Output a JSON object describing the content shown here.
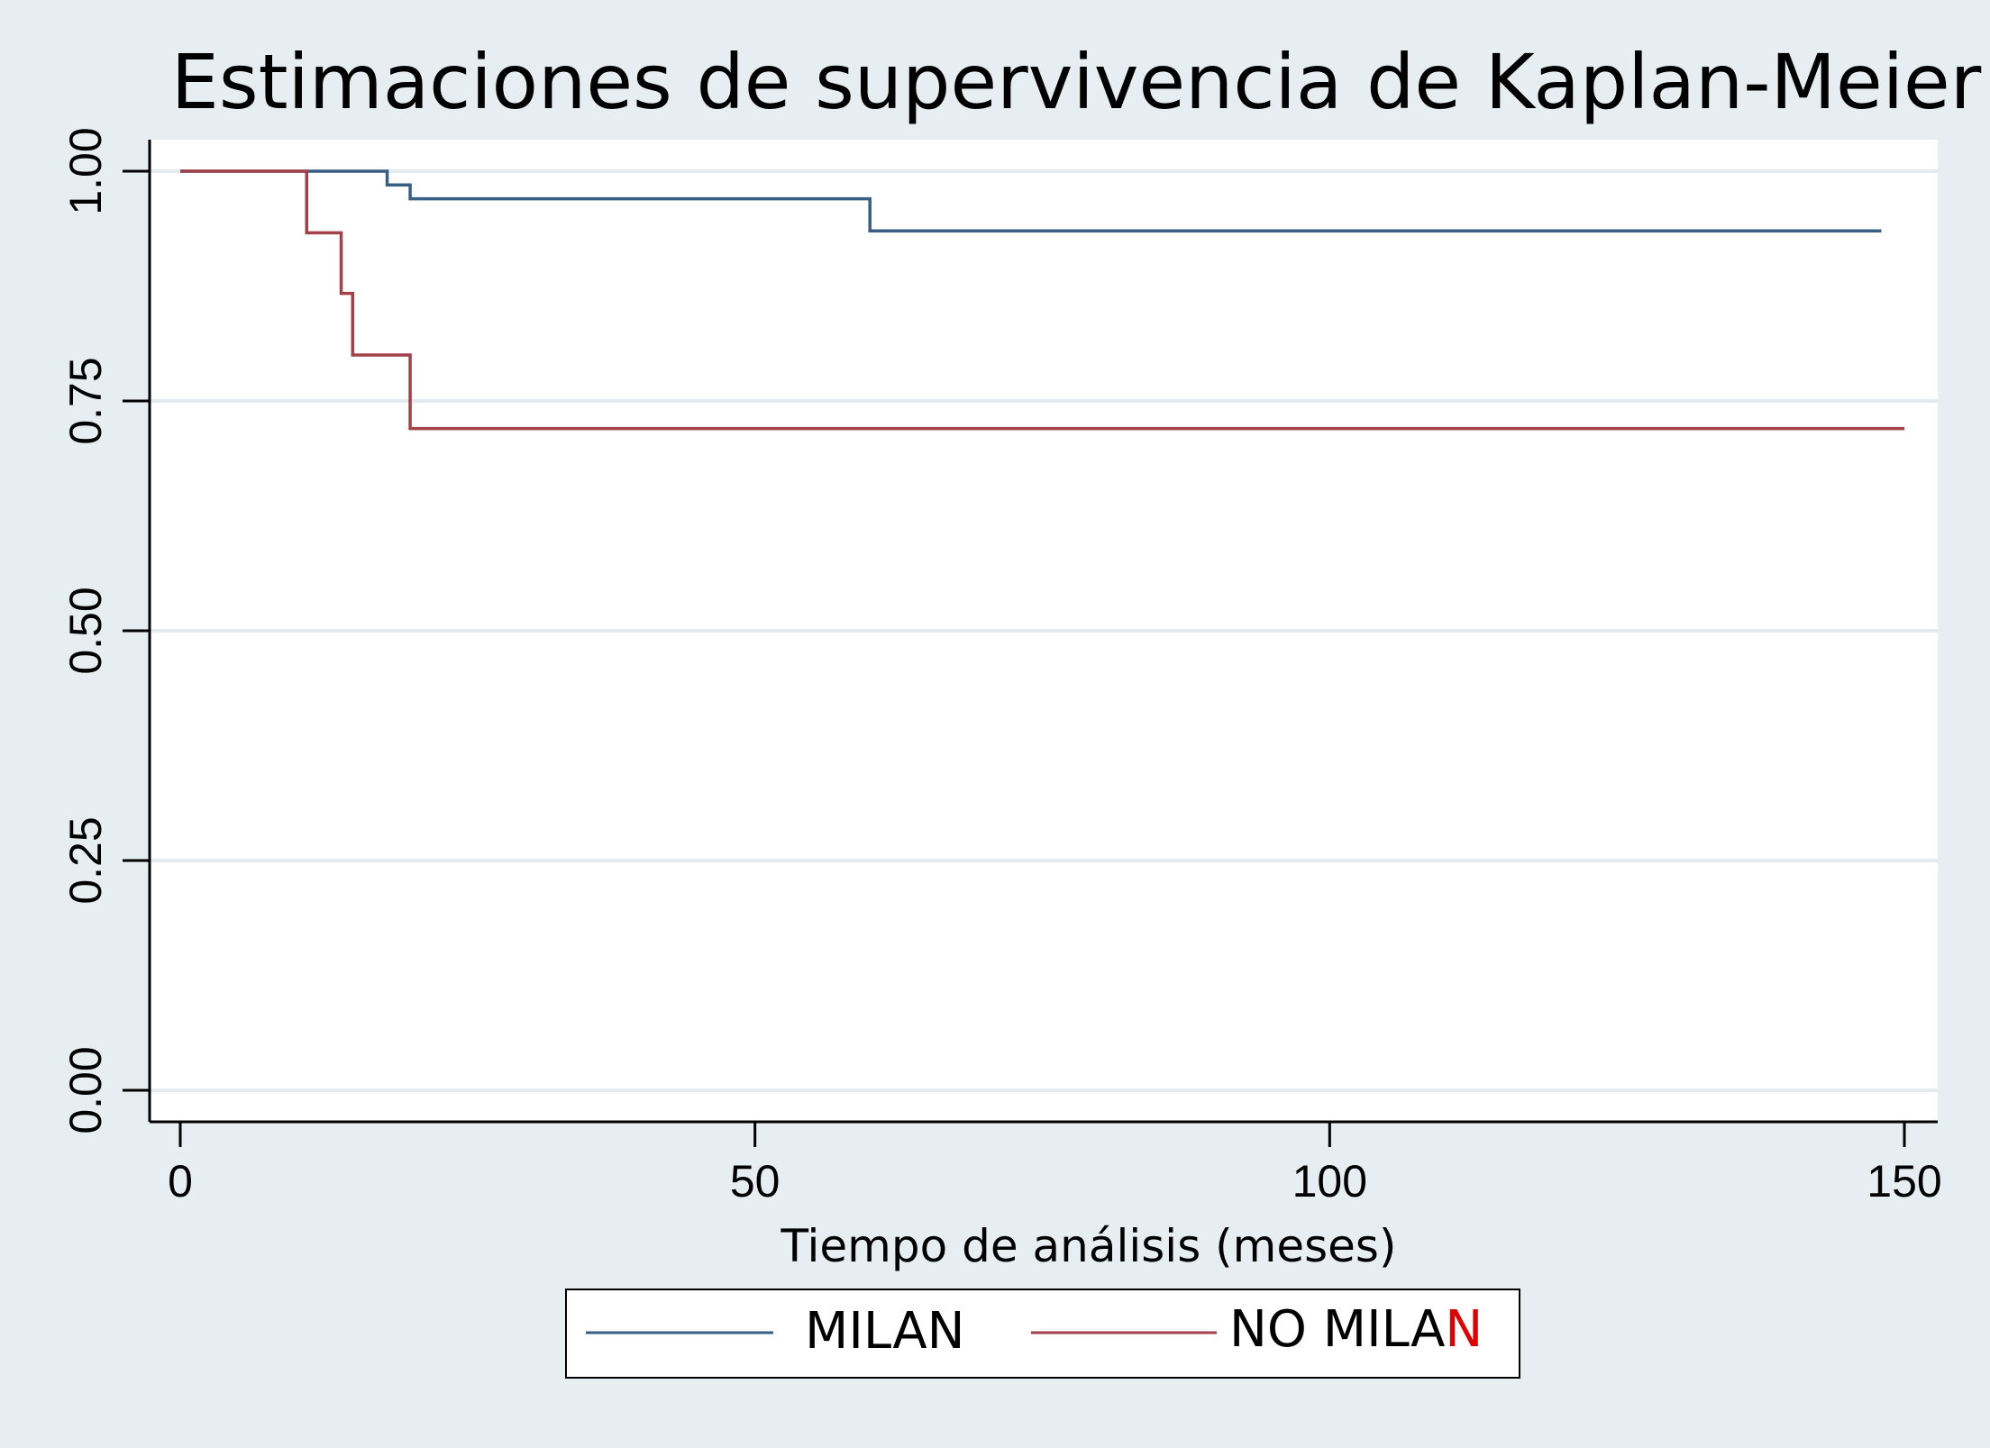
{
  "colors": {
    "milan": "#3a5f86",
    "no_milan": "#a3414a",
    "background": "#e7eef2",
    "legend_accent": "#e00000"
  },
  "chart_data": {
    "type": "line",
    "step": true,
    "title": "Estimaciones de supervivencia de Kaplan-Meier",
    "xlabel": "Tiempo de análisis (meses)",
    "ylabel": "",
    "xlim": [
      0,
      150
    ],
    "ylim": [
      0,
      1
    ],
    "xticks": [
      "0",
      "50",
      "100",
      "150"
    ],
    "yticks": [
      "0.00",
      "0.25",
      "0.50",
      "0.75",
      "1.00"
    ],
    "grid": "horizontal",
    "legend_position": "bottom",
    "series": [
      {
        "name": "MILAN",
        "x": [
          0,
          18,
          20,
          60,
          148
        ],
        "y": [
          1.0,
          0.985,
          0.97,
          0.935,
          0.935
        ]
      },
      {
        "name": "NO MILAN",
        "x": [
          0,
          11,
          14,
          15,
          20,
          150
        ],
        "y": [
          1.0,
          0.933,
          0.867,
          0.8,
          0.72,
          0.72
        ]
      }
    ]
  },
  "legend": {
    "milan_label": "MILAN",
    "no_milan_prefix": "NO MILA",
    "no_milan_suffix": "N"
  }
}
